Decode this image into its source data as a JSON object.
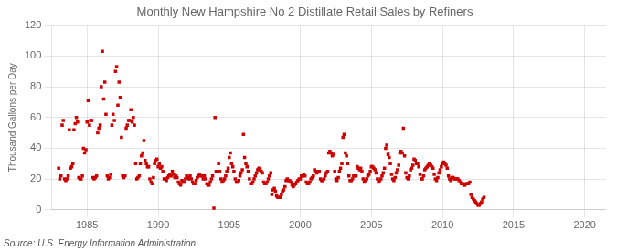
{
  "chart_data": {
    "type": "scatter",
    "title": "Monthly New Hampshire No 2 Distillate Retail Sales by Refiners",
    "ylabel": "Thousand Gallons per Day",
    "source": "Source: U.S. Energy Information Administration",
    "color": "#cc0000",
    "marker": "square",
    "grid": true,
    "xlim": [
      1982.5,
      2021.5
    ],
    "ylim": [
      0,
      120
    ],
    "xticks": [
      1985,
      1990,
      1995,
      2000,
      2005,
      2010,
      2015,
      2020
    ],
    "yticks": [
      0,
      20,
      40,
      60,
      80,
      100,
      120
    ],
    "x": [
      1983.0,
      1983.08,
      1983.17,
      1983.25,
      1983.33,
      1983.42,
      1983.5,
      1983.58,
      1983.67,
      1983.75,
      1983.83,
      1983.92,
      1984.0,
      1984.08,
      1984.17,
      1984.25,
      1984.33,
      1984.42,
      1984.5,
      1984.58,
      1984.67,
      1984.75,
      1984.83,
      1984.92,
      1985.0,
      1985.08,
      1985.17,
      1985.25,
      1985.33,
      1985.42,
      1985.5,
      1985.58,
      1985.67,
      1985.75,
      1985.83,
      1985.92,
      1986.0,
      1986.08,
      1986.17,
      1986.25,
      1986.33,
      1986.42,
      1986.5,
      1986.58,
      1986.67,
      1986.75,
      1986.83,
      1986.92,
      1987.0,
      1987.08,
      1987.17,
      1987.25,
      1987.33,
      1987.42,
      1987.5,
      1987.58,
      1987.67,
      1987.75,
      1987.83,
      1987.92,
      1988.0,
      1988.08,
      1988.17,
      1988.25,
      1988.33,
      1988.42,
      1988.5,
      1988.58,
      1988.67,
      1988.75,
      1988.83,
      1988.92,
      1989.0,
      1989.08,
      1989.17,
      1989.25,
      1989.33,
      1989.42,
      1989.5,
      1989.58,
      1989.67,
      1989.75,
      1989.83,
      1989.92,
      1990.0,
      1990.08,
      1990.17,
      1990.25,
      1990.33,
      1990.42,
      1990.5,
      1990.58,
      1990.67,
      1990.75,
      1990.83,
      1990.92,
      1991.0,
      1991.08,
      1991.17,
      1991.25,
      1991.33,
      1991.42,
      1991.5,
      1991.58,
      1991.67,
      1991.75,
      1991.83,
      1991.92,
      1992.0,
      1992.08,
      1992.17,
      1992.25,
      1992.33,
      1992.42,
      1992.5,
      1992.58,
      1992.67,
      1992.75,
      1992.83,
      1992.92,
      1993.0,
      1993.08,
      1993.17,
      1993.25,
      1993.33,
      1993.42,
      1993.5,
      1993.58,
      1993.67,
      1993.75,
      1993.83,
      1993.92,
      1994.0,
      1994.08,
      1994.17,
      1994.25,
      1994.33,
      1994.42,
      1994.5,
      1994.58,
      1994.67,
      1994.75,
      1994.83,
      1994.92,
      1995.0,
      1995.08,
      1995.17,
      1995.25,
      1995.33,
      1995.42,
      1995.5,
      1995.58,
      1995.67,
      1995.75,
      1995.83,
      1995.92,
      1996.0,
      1996.08,
      1996.17,
      1996.25,
      1996.33,
      1996.42,
      1996.5,
      1996.58,
      1996.67,
      1996.75,
      1996.83,
      1996.92,
      1997.0,
      1997.08,
      1997.17,
      1997.25,
      1997.33,
      1997.42,
      1997.5,
      1997.58,
      1997.67,
      1997.75,
      1997.83,
      1997.92,
      1998.0,
      1998.08,
      1998.17,
      1998.25,
      1998.33,
      1998.42,
      1998.5,
      1998.58,
      1998.67,
      1998.75,
      1998.83,
      1998.92,
      1999.0,
      1999.08,
      1999.17,
      1999.25,
      1999.33,
      1999.42,
      1999.5,
      1999.58,
      1999.67,
      1999.75,
      1999.83,
      1999.92,
      2000.0,
      2000.08,
      2000.17,
      2000.25,
      2000.33,
      2000.42,
      2000.5,
      2000.58,
      2000.67,
      2000.75,
      2000.83,
      2000.92,
      2001.0,
      2001.08,
      2001.17,
      2001.25,
      2001.33,
      2001.42,
      2001.5,
      2001.58,
      2001.67,
      2001.75,
      2001.83,
      2001.92,
      2002.0,
      2002.08,
      2002.17,
      2002.25,
      2002.33,
      2002.42,
      2002.5,
      2002.58,
      2002.67,
      2002.75,
      2002.83,
      2002.92,
      2003.0,
      2003.08,
      2003.17,
      2003.25,
      2003.33,
      2003.42,
      2003.5,
      2003.58,
      2003.67,
      2003.75,
      2003.83,
      2003.92,
      2004.0,
      2004.08,
      2004.17,
      2004.25,
      2004.33,
      2004.42,
      2004.5,
      2004.58,
      2004.67,
      2004.75,
      2004.83,
      2004.92,
      2005.0,
      2005.08,
      2005.17,
      2005.25,
      2005.33,
      2005.42,
      2005.5,
      2005.58,
      2005.67,
      2005.75,
      2005.83,
      2005.92,
      2006.0,
      2006.08,
      2006.17,
      2006.25,
      2006.33,
      2006.42,
      2006.5,
      2006.58,
      2006.67,
      2006.75,
      2006.83,
      2006.92,
      2007.0,
      2007.08,
      2007.17,
      2007.25,
      2007.33,
      2007.42,
      2007.5,
      2007.58,
      2007.67,
      2007.75,
      2007.83,
      2007.92,
      2008.0,
      2008.08,
      2008.17,
      2008.25,
      2008.33,
      2008.42,
      2008.5,
      2008.58,
      2008.67,
      2008.75,
      2008.83,
      2008.92,
      2009.0,
      2009.08,
      2009.17,
      2009.25,
      2009.33,
      2009.42,
      2009.5,
      2009.58,
      2009.67,
      2009.75,
      2009.83,
      2009.92,
      2010.0,
      2010.08,
      2010.17,
      2010.25,
      2010.33,
      2010.42,
      2010.5,
      2010.58,
      2010.67,
      2010.75,
      2010.83,
      2010.92,
      2011.0,
      2011.08,
      2011.17,
      2011.25,
      2011.33,
      2011.42,
      2011.5,
      2011.58,
      2011.67,
      2011.75,
      2011.83,
      2011.92,
      2012.0,
      2012.08,
      2012.17,
      2012.25,
      2012.33,
      2012.42,
      2012.5,
      2012.58,
      2012.67,
      2012.75,
      2012.83,
      2012.92
    ],
    "values": [
      27,
      20,
      22,
      55,
      58,
      20,
      19,
      20,
      22,
      52,
      27,
      28,
      30,
      52,
      56,
      60,
      57,
      21,
      20,
      20,
      22,
      40,
      37,
      39,
      57,
      71,
      55,
      58,
      58,
      21,
      20,
      21,
      22,
      50,
      53,
      55,
      80,
      103,
      72,
      83,
      62,
      22,
      20,
      21,
      23,
      55,
      62,
      58,
      90,
      93,
      68,
      83,
      73,
      47,
      22,
      21,
      22,
      53,
      55,
      58,
      58,
      65,
      57,
      60,
      55,
      30,
      20,
      21,
      22,
      30,
      35,
      37,
      45,
      32,
      30,
      28,
      28,
      20,
      18,
      17,
      21,
      30,
      32,
      33,
      28,
      30,
      27,
      28,
      25,
      20,
      20,
      19,
      21,
      22,
      23,
      22,
      25,
      23,
      21,
      22,
      21,
      18,
      17,
      16,
      19,
      18,
      18,
      20,
      22,
      21,
      20,
      22,
      20,
      18,
      17,
      17,
      19,
      21,
      22,
      23,
      22,
      22,
      20,
      22,
      20,
      17,
      16,
      16,
      18,
      20,
      22,
      1,
      60,
      25,
      25,
      30,
      25,
      20,
      18,
      19,
      20,
      22,
      25,
      27,
      34,
      37,
      30,
      28,
      25,
      20,
      18,
      18,
      19,
      22,
      24,
      26,
      49,
      34,
      30,
      28,
      25,
      20,
      17,
      17,
      18,
      20,
      22,
      24,
      26,
      27,
      26,
      25,
      24,
      18,
      17,
      17,
      18,
      20,
      22,
      24,
      10,
      13,
      14,
      12,
      9,
      8,
      8,
      8,
      10,
      12,
      13,
      15,
      19,
      20,
      19,
      19,
      18,
      16,
      15,
      16,
      17,
      18,
      19,
      20,
      20,
      22,
      22,
      23,
      22,
      18,
      17,
      17,
      18,
      20,
      21,
      22,
      26,
      25,
      24,
      25,
      25,
      20,
      19,
      19,
      20,
      22,
      24,
      25,
      37,
      38,
      37,
      35,
      36,
      25,
      20,
      19,
      21,
      25,
      27,
      30,
      47,
      49,
      37,
      35,
      30,
      22,
      19,
      19,
      20,
      22,
      22,
      22,
      28,
      27,
      26,
      27,
      25,
      20,
      18,
      19,
      20,
      22,
      23,
      25,
      28,
      28,
      27,
      26,
      24,
      20,
      18,
      19,
      20,
      22,
      24,
      27,
      40,
      42,
      36,
      34,
      30,
      23,
      20,
      19,
      21,
      24,
      26,
      29,
      37,
      38,
      37,
      53,
      35,
      24,
      21,
      20,
      22,
      26,
      27,
      29,
      33,
      32,
      30,
      30,
      28,
      23,
      20,
      20,
      22,
      26,
      27,
      28,
      29,
      30,
      29,
      28,
      27,
      23,
      20,
      19,
      21,
      24,
      26,
      28,
      30,
      31,
      30,
      29,
      27,
      22,
      20,
      19,
      21,
      21,
      20,
      20,
      20,
      20,
      19,
      18,
      17,
      17,
      16,
      16,
      17,
      17,
      17,
      18,
      10,
      8,
      7,
      6,
      5,
      4,
      3,
      3,
      4,
      5,
      7,
      8
    ]
  }
}
